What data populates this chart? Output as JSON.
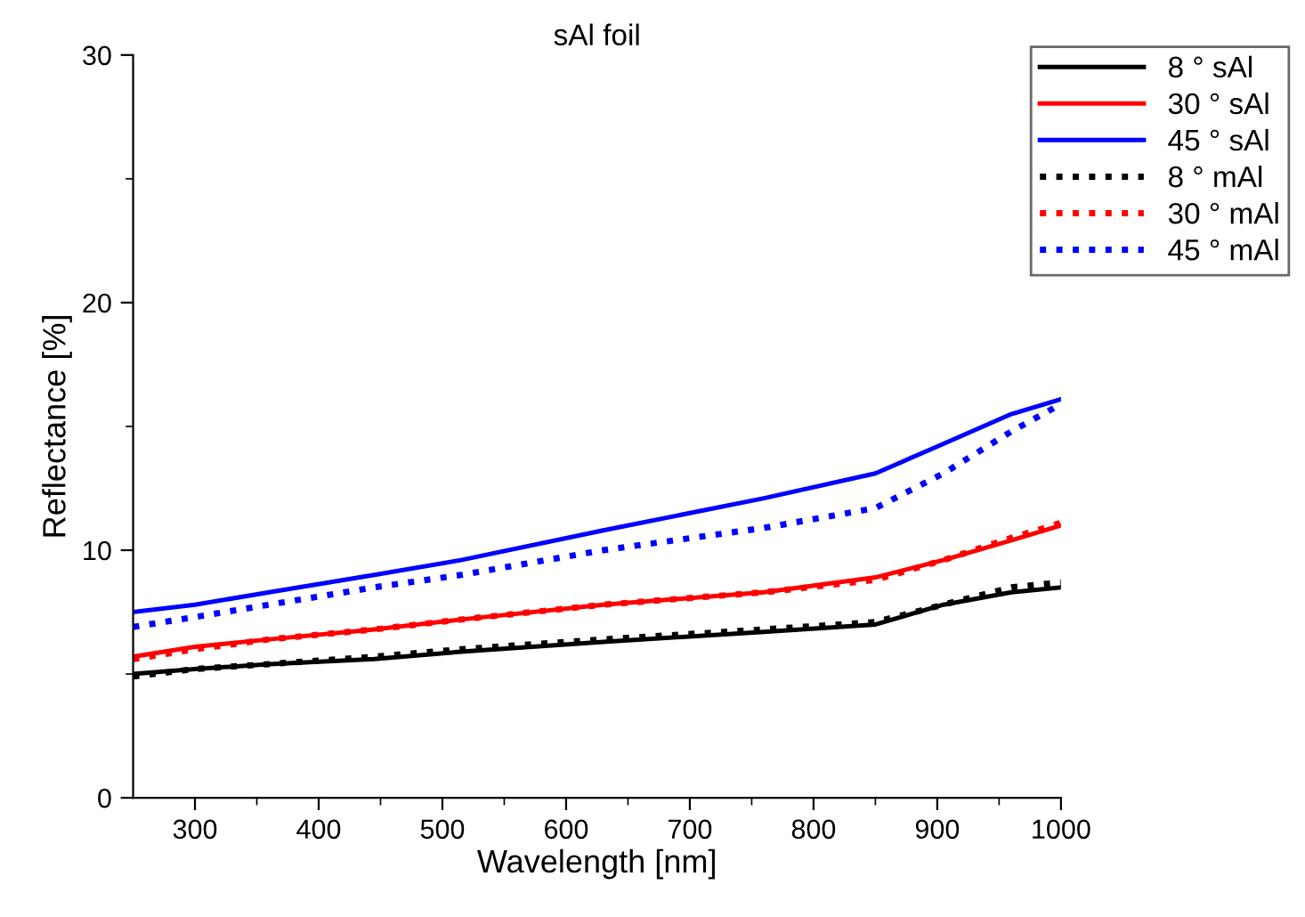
{
  "chart_data": {
    "type": "line",
    "title": "sAl foil",
    "xlabel": "Wavelength [nm]",
    "ylabel": "Reflectance [%]",
    "x": [
      250,
      300,
      360,
      445,
      515,
      630,
      760,
      850,
      905,
      960,
      1000
    ],
    "series": [
      {
        "name": "8 ° sAl",
        "color": "#000000",
        "line_style": "solid",
        "values": [
          5.0,
          5.2,
          5.4,
          5.6,
          5.9,
          6.3,
          6.7,
          7.0,
          7.8,
          8.3,
          8.5
        ]
      },
      {
        "name": "30 ° sAl",
        "color": "#ff0000",
        "line_style": "solid",
        "values": [
          5.7,
          6.1,
          6.4,
          6.8,
          7.2,
          7.8,
          8.3,
          8.9,
          9.6,
          10.4,
          11.0
        ]
      },
      {
        "name": "45 ° sAl",
        "color": "#0000ff",
        "line_style": "solid",
        "values": [
          7.5,
          7.8,
          8.3,
          9.0,
          9.6,
          10.8,
          12.1,
          13.1,
          14.3,
          15.5,
          16.1
        ]
      },
      {
        "name": "8 ° mAl",
        "color": "#000000",
        "line_style": "dotted",
        "values": [
          4.9,
          5.2,
          5.4,
          5.7,
          6.0,
          6.4,
          6.8,
          7.1,
          7.8,
          8.5,
          8.7
        ]
      },
      {
        "name": "30 ° mAl",
        "color": "#ff0000",
        "line_style": "dotted",
        "values": [
          5.6,
          6.0,
          6.4,
          6.8,
          7.2,
          7.8,
          8.3,
          8.8,
          9.6,
          10.5,
          11.1
        ]
      },
      {
        "name": "45 ° mAl",
        "color": "#0000ff",
        "line_style": "dotted",
        "values": [
          6.9,
          7.3,
          7.8,
          8.5,
          9.0,
          10.0,
          10.9,
          11.7,
          13.1,
          14.8,
          15.9
        ]
      }
    ],
    "xlim": [
      250,
      1000
    ],
    "ylim": [
      0,
      30
    ],
    "xticks": [
      300,
      400,
      500,
      600,
      700,
      800,
      900,
      1000,
      {
        "value": 350,
        "label": null
      },
      {
        "value": 450,
        "label": null
      },
      {
        "value": 550,
        "label": null
      },
      {
        "value": 650,
        "label": null
      },
      {
        "value": 750,
        "label": null
      },
      {
        "value": 850,
        "label": null
      },
      {
        "value": 950,
        "label": null
      }
    ],
    "yticks": [
      0,
      10,
      20,
      30,
      {
        "value": 5,
        "label": null
      },
      {
        "value": 15,
        "label": null
      },
      {
        "value": 25,
        "label": null
      }
    ],
    "grid": false,
    "legend": "top right",
    "marker": "none"
  }
}
